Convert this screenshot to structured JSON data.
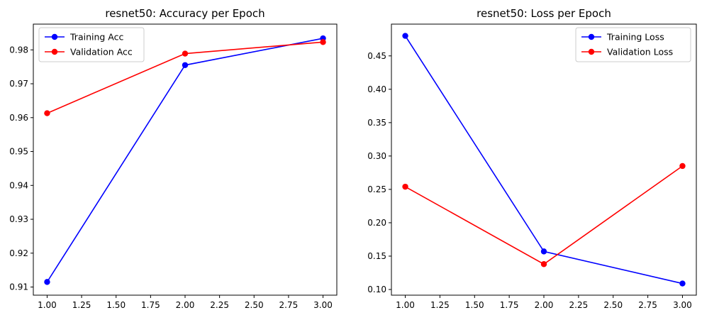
{
  "chart_data": [
    {
      "type": "line",
      "title": "resnet50: Accuracy per Epoch",
      "xlabel": "",
      "ylabel": "",
      "xlim": [
        0.9,
        3.1
      ],
      "ylim": [
        0.9076,
        0.9876
      ],
      "xticks": [
        "1.00",
        "1.25",
        "1.50",
        "1.75",
        "2.00",
        "2.25",
        "2.50",
        "2.75",
        "3.00"
      ],
      "yticks": [
        "0.91",
        "0.92",
        "0.93",
        "0.94",
        "0.95",
        "0.96",
        "0.97",
        "0.98"
      ],
      "grid": false,
      "legend": "upper-left",
      "series": [
        {
          "name": "Training Acc",
          "color": "#0000ff",
          "x": [
            1,
            2,
            3
          ],
          "y": [
            0.9115,
            0.9755,
            0.9834
          ]
        },
        {
          "name": "Validation Acc",
          "color": "#ff0000",
          "x": [
            1,
            2,
            3
          ],
          "y": [
            0.9613,
            0.9789,
            0.9823
          ]
        }
      ]
    },
    {
      "type": "line",
      "title": "resnet50: Loss per Epoch",
      "xlabel": "",
      "ylabel": "",
      "xlim": [
        0.9,
        3.1
      ],
      "ylim": [
        0.0915,
        0.4976
      ],
      "xticks": [
        "1.00",
        "1.25",
        "1.50",
        "1.75",
        "2.00",
        "2.25",
        "2.50",
        "2.75",
        "3.00"
      ],
      "yticks": [
        "0.10",
        "0.15",
        "0.20",
        "0.25",
        "0.30",
        "0.35",
        "0.40",
        "0.45"
      ],
      "grid": false,
      "legend": "upper-right",
      "series": [
        {
          "name": "Training Loss",
          "color": "#0000ff",
          "x": [
            1,
            2,
            3
          ],
          "y": [
            0.48,
            0.157,
            0.109
          ]
        },
        {
          "name": "Validation Loss",
          "color": "#ff0000",
          "x": [
            1,
            2,
            3
          ],
          "y": [
            0.254,
            0.138,
            0.285
          ]
        }
      ]
    }
  ]
}
